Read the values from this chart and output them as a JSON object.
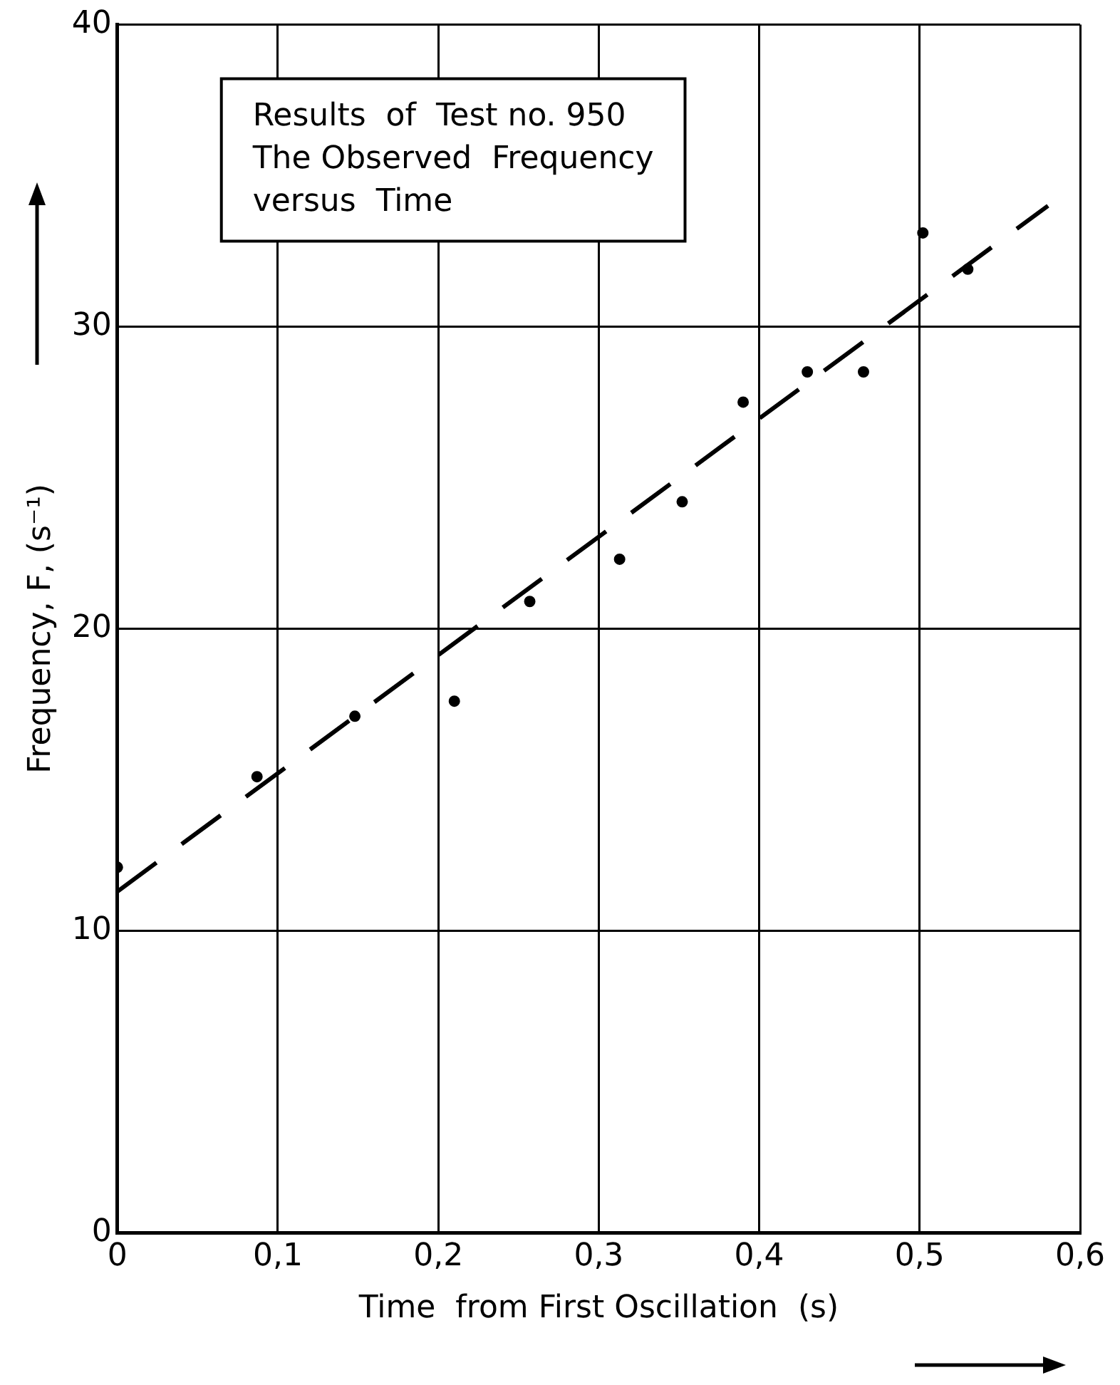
{
  "chart_data": {
    "type": "scatter",
    "xlabel": "Time  from First Oscillation  (s)",
    "ylabel": "Frequency, F, (s⁻¹)",
    "annotations": [
      "Results  of  Test no. 950",
      "The Observed  Frequency",
      "versus  Time"
    ],
    "xlim": [
      0,
      0.6
    ],
    "xticks": [
      0,
      {
        "value": 0.1,
        "label": "0,1"
      },
      {
        "value": 0.2,
        "label": "0,2"
      },
      {
        "value": 0.3,
        "label": "0,3"
      },
      {
        "value": 0.4,
        "label": "0,4"
      },
      {
        "value": 0.5,
        "label": "0,5"
      },
      {
        "value": 0.6,
        "label": "0,6"
      }
    ],
    "ylim": [
      0,
      40
    ],
    "yticks": [
      0,
      10,
      20,
      30,
      40
    ],
    "grid": true,
    "legend": false,
    "series": [
      {
        "type": "scatter",
        "color": "#000000",
        "marker": "circle",
        "x": [
          0,
          0.087,
          0.148,
          0.21,
          0.257,
          0.313,
          0.352,
          0.39,
          0.43,
          0.465,
          0.502,
          0.53
        ],
        "values": [
          12.1,
          15.1,
          17.1,
          17.6,
          20.9,
          22.3,
          24.2,
          27.5,
          28.5,
          28.5,
          33.1,
          31.9
        ]
      },
      {
        "type": "line",
        "color": "#000000",
        "marker": "none",
        "line_style": "dashed",
        "x": [
          0,
          0.58
        ],
        "values": [
          11.3,
          34.0
        ]
      }
    ]
  }
}
